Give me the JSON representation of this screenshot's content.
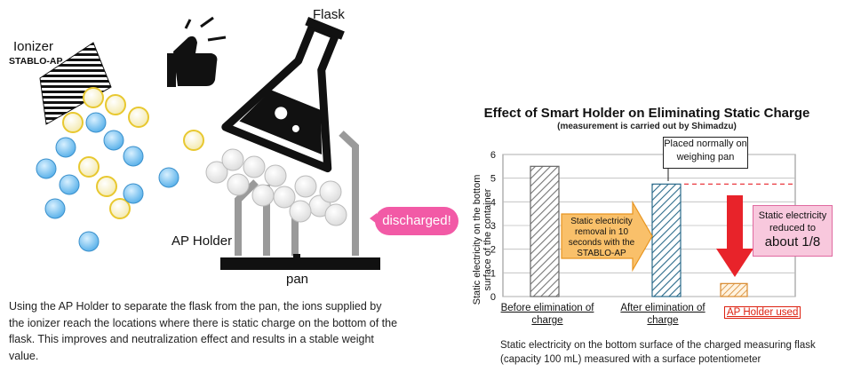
{
  "labels": {
    "ionizer": "Ionizer",
    "ionizer_model": "STABLO-AP",
    "flask": "Flask",
    "holder": "AP Holder",
    "pan": "pan",
    "discharged": "discharged!"
  },
  "description": "Using the AP Holder to separate the flask from the pan, the ions supplied by the ionizer reach the locations where there is static charge on the bottom of the flask. This improves and neutralization effect and results in a stable weight value.",
  "chart_data": {
    "type": "bar",
    "title": "Effect of Smart Holder on Eliminating Static Charge",
    "subtitle": "(measurement is carried out by Shimadzu)",
    "ylabel": "Static electricity on the bottom surface of the container",
    "ylim": [
      0,
      6
    ],
    "yticks": [
      "0",
      "1",
      "2",
      "3",
      "4",
      "5",
      "6"
    ],
    "categories": [
      "Before elimination of charge",
      "After elimination of charge",
      "AP Holder used"
    ],
    "values": [
      5.5,
      4.75,
      0.55
    ],
    "grid": true,
    "annotations": {
      "placed_normally": "Placed normally on weighing pan",
      "removal": "Static electricity removal in 10 seconds with the STABLO-AP",
      "reduced_line1": "Static electricity reduced to",
      "reduced_line2": "about 1/8"
    },
    "colors": {
      "before": "#777777",
      "after": "#2a6a8a",
      "holder": "#d88a30",
      "arrow": "#e8232a",
      "orange_arrow": "#f7a830"
    }
  },
  "footnote": "Static electricity on the bottom surface of the charged measuring flask (capacity 100 mL) measured with a surface potentiometer"
}
